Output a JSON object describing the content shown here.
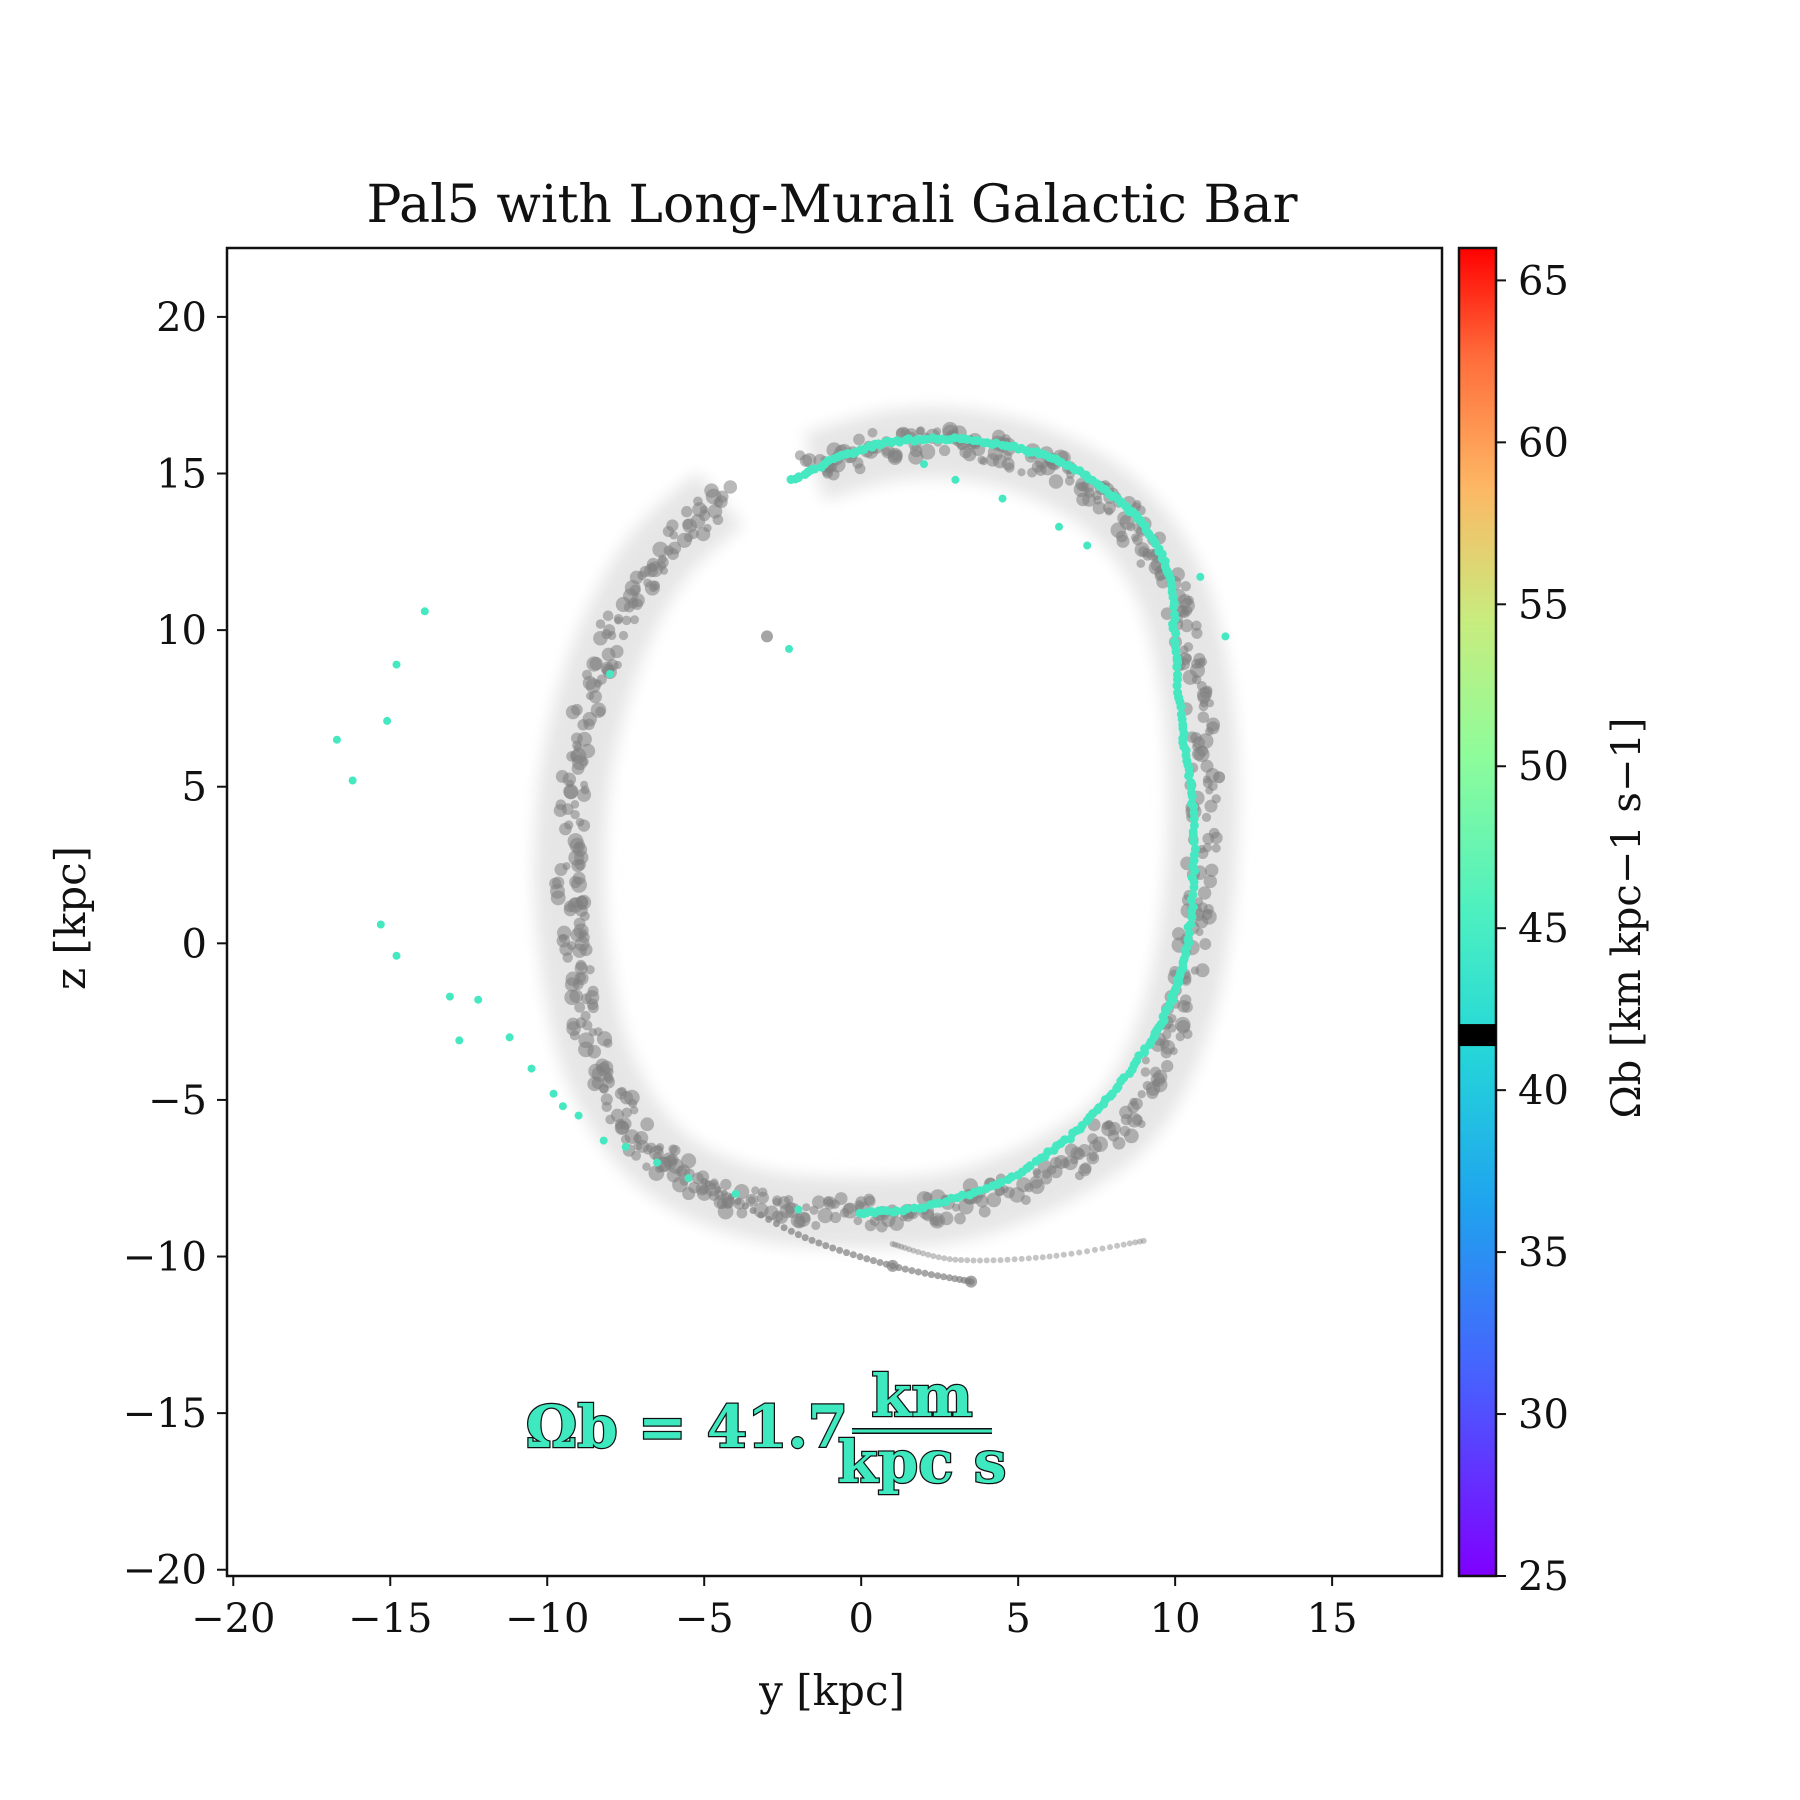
{
  "chart_data": {
    "type": "scatter",
    "title": "Pal5 with Long-Murali Galactic Bar",
    "xlabel": "y [kpc]",
    "ylabel": "z [kpc]",
    "xlim": [
      -20.2,
      18.5
    ],
    "ylim": [
      -20.2,
      22.2
    ],
    "xticks": [
      -20,
      -15,
      -10,
      -5,
      0,
      5,
      10,
      15
    ],
    "xtick_labels": [
      "−20",
      "−15",
      "−10",
      "−5",
      "0",
      "5",
      "10",
      "15"
    ],
    "yticks": [
      -20,
      -15,
      -10,
      -5,
      0,
      5,
      10,
      15,
      20
    ],
    "ytick_labels": [
      "−20",
      "−15",
      "−10",
      "−5",
      "0",
      "5",
      "10",
      "15",
      "20"
    ],
    "grid": false,
    "colorbar": {
      "label": "Ωb [km kpc−1 s−1]",
      "range": [
        25,
        66
      ],
      "ticks": [
        25,
        30,
        35,
        40,
        45,
        50,
        55,
        60,
        65
      ],
      "tick_labels": [
        "25",
        "30",
        "35",
        "40",
        "45",
        "50",
        "55",
        "60",
        "65"
      ],
      "colormap": "rainbow",
      "marker_value": 41.7,
      "marker_color": "#000000"
    },
    "annotation": {
      "lhs": "Ωb = 41.7",
      "num": "km",
      "den": "kpc s"
    },
    "series": [
      {
        "color": "#7f7f7f",
        "role": "background stream (all bar speeds)",
        "points": [
          [
            -1.5,
            15.2
          ],
          [
            1,
            15.9
          ],
          [
            3.5,
            15.9
          ],
          [
            6,
            15.2
          ],
          [
            8.2,
            13.8
          ],
          [
            9.8,
            11.5
          ],
          [
            10.6,
            8.5
          ],
          [
            10.9,
            5
          ],
          [
            10.7,
            1
          ],
          [
            10,
            -2.5
          ],
          [
            8.5,
            -5.5
          ],
          [
            6,
            -7.3
          ],
          [
            3,
            -8.4
          ],
          [
            0,
            -8.6
          ],
          [
            -3,
            -8.4
          ],
          [
            -5.5,
            -7.5
          ],
          [
            -7.2,
            -6
          ],
          [
            -8.5,
            -3.5
          ],
          [
            -9.1,
            -0.5
          ],
          [
            -9.3,
            2.5
          ],
          [
            -9,
            6
          ],
          [
            -8,
            9.5
          ],
          [
            -6.5,
            12.3
          ],
          [
            -4.5,
            14.2
          ],
          [
            -3,
            9.8
          ],
          [
            11.4,
            5.3
          ],
          [
            1,
            -10.3
          ],
          [
            3.5,
            -10.8
          ]
        ]
      },
      {
        "color": "#46e8c2",
        "role": "stream at Ωb = 41.7",
        "points": [
          [
            -2.2,
            14.8
          ],
          [
            -0.5,
            15.6
          ],
          [
            1,
            16
          ],
          [
            3,
            16.1
          ],
          [
            5,
            15.8
          ],
          [
            6.5,
            15.3
          ],
          [
            8,
            14.3
          ],
          [
            9,
            13.3
          ],
          [
            9.8,
            11.8
          ],
          [
            10,
            9.5
          ],
          [
            10.2,
            7
          ],
          [
            10.5,
            5
          ],
          [
            10.6,
            2.5
          ],
          [
            10.4,
            0
          ],
          [
            10,
            -1.5
          ],
          [
            9.3,
            -3
          ],
          [
            8,
            -4.8
          ],
          [
            6.5,
            -6.3
          ],
          [
            4.5,
            -7.6
          ],
          [
            2,
            -8.4
          ],
          [
            0,
            -8.6
          ],
          [
            -2,
            -8.5
          ],
          [
            -4,
            -8
          ],
          [
            -5.5,
            -7.5
          ],
          [
            -6.5,
            -7
          ],
          [
            -7.5,
            -6.5
          ],
          [
            -8.2,
            -6.3
          ],
          [
            -9,
            -5.5
          ],
          [
            -9.5,
            -5.2
          ],
          [
            -9.8,
            -4.8
          ],
          [
            -10.5,
            -4
          ],
          [
            -11.2,
            -3
          ],
          [
            -12.2,
            -1.8
          ],
          [
            -12.8,
            -3.1
          ],
          [
            -13.1,
            -1.7
          ],
          [
            -14.8,
            -0.4
          ],
          [
            -15.3,
            0.6
          ],
          [
            -16.2,
            5.2
          ],
          [
            -16.7,
            6.5
          ],
          [
            -15.1,
            7.1
          ],
          [
            -14.8,
            8.9
          ],
          [
            -13.9,
            10.6
          ],
          [
            -8,
            8.6
          ],
          [
            -2.3,
            9.4
          ],
          [
            11.6,
            9.8
          ],
          [
            10.8,
            11.7
          ],
          [
            9.5,
            12.6
          ],
          [
            7.2,
            12.7
          ],
          [
            6.3,
            13.3
          ],
          [
            4.5,
            14.2
          ],
          [
            3,
            14.8
          ],
          [
            2,
            15.3
          ]
        ]
      }
    ]
  }
}
